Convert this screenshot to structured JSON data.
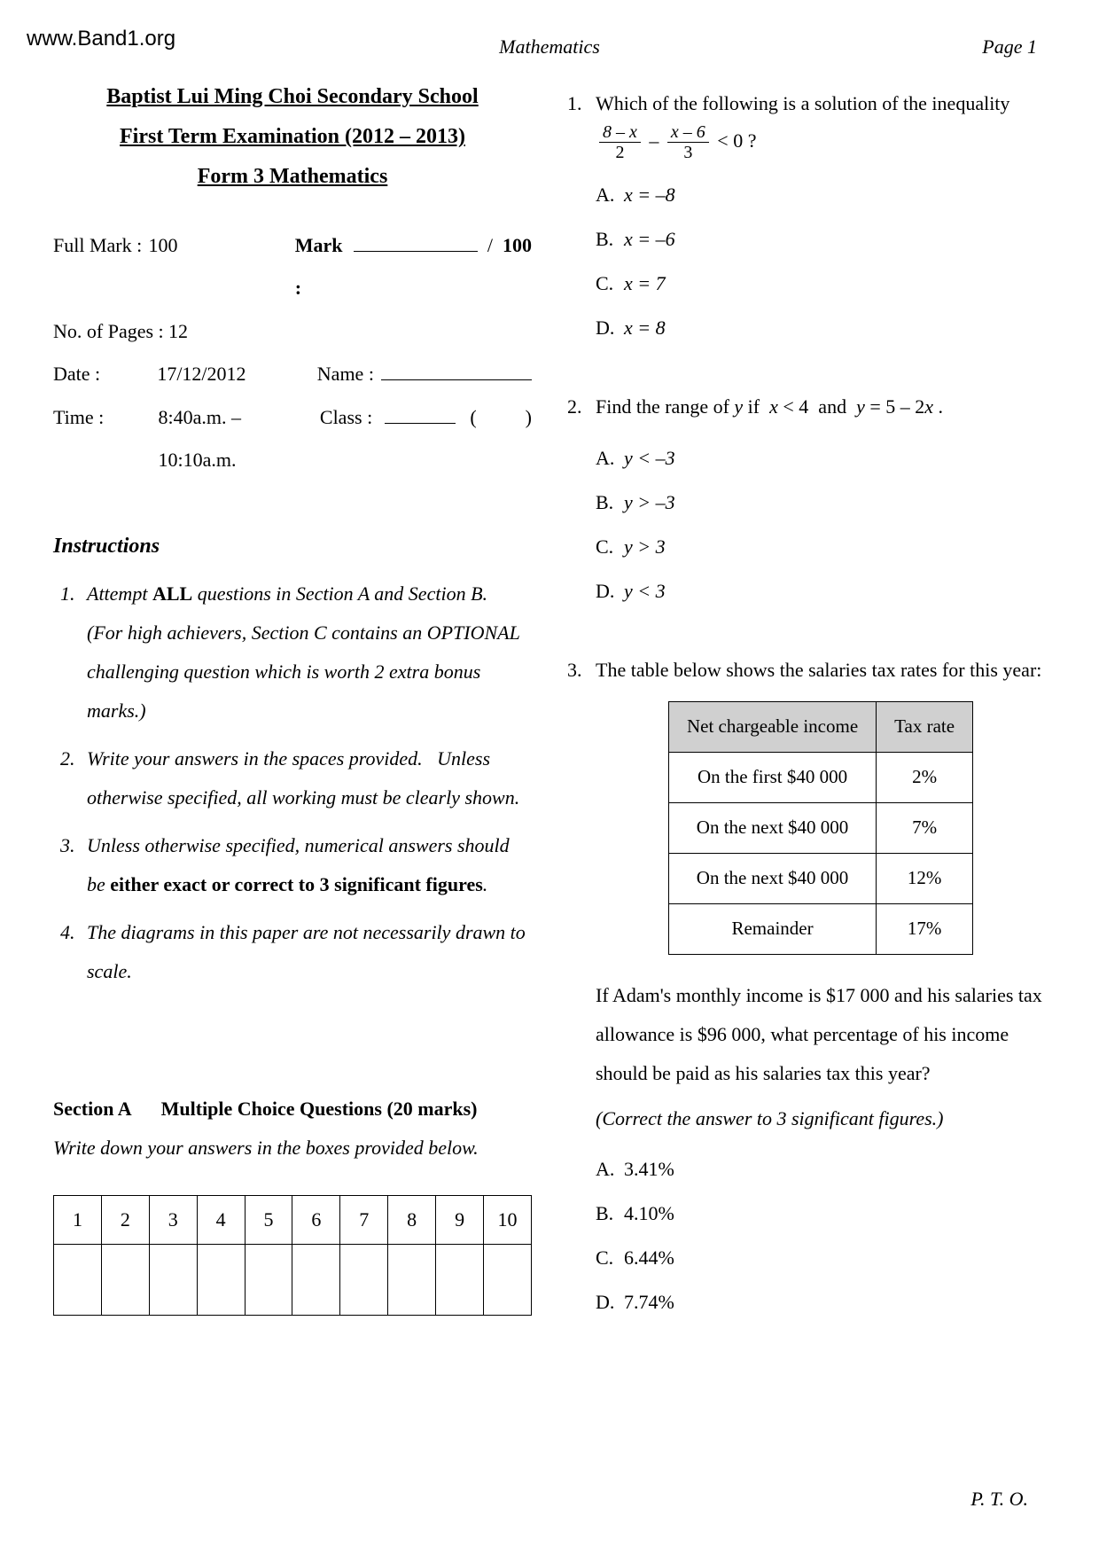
{
  "watermark": "www.Band1.org",
  "header": {
    "left": "",
    "center": "Mathematics",
    "right": "Page 1"
  },
  "titles": {
    "school": "Baptist Lui Ming Choi Secondary School",
    "exam": "First Term Examination (2012 – 2013)",
    "subject": "Form 3 Mathematics"
  },
  "info": {
    "fullmark_label": "Full Mark :",
    "fullmark": "100",
    "mark_label": "Mark :",
    "mark_total": "100",
    "pages_label": "No. of Pages :",
    "pages": "12",
    "date_label": "Date :",
    "date": "17/12/2012",
    "name_label": "Name :",
    "time_label": "Time :",
    "time": "8:40a.m. – 10:10a.m.",
    "class_label": "Class :"
  },
  "instructions": {
    "title": "Instructions",
    "items": [
      "Attempt <b>ALL</b> questions in Section A and Section B.<br>(For high achievers, Section C contains an OPTIONAL challenging question which is worth 2 extra bonus marks.)",
      "Write your answers in the spaces provided. &nbsp;&nbsp;Unless otherwise specified, all working must be clearly shown.",
      "Unless otherwise specified, numerical answers should be <b>either exact or correct to 3 significant figures</b>.",
      "The diagrams in this paper are not necessarily drawn to scale."
    ]
  },
  "sectionA": {
    "title_prefix": "Section A",
    "title": "Multiple Choice Questions (20 marks)",
    "subtitle": "Write down your answers in the boxes provided below.",
    "cols": [
      "1",
      "2",
      "3",
      "4",
      "5",
      "6",
      "7",
      "8",
      "9",
      "10"
    ]
  },
  "q1": {
    "num": "1.",
    "stem_a": "Which of the following is a solution of the inequality ",
    "frac1_num": "8 – x",
    "frac1_den": "2",
    "minus": "–",
    "frac2_num": "x – 6",
    "frac2_den": "3",
    "stem_b": " < 0 ?",
    "A": "x = –8",
    "B": "x = –6",
    "C": "x = 7",
    "D": "x = 8"
  },
  "q2": {
    "num": "2.",
    "stem": "Find the range of <span class=\"italic-var\">y</span> if &nbsp;<span class=\"italic-var\">x</span> < 4 &nbsp;and&nbsp; <span class=\"italic-var\">y</span> = 5 – 2<span class=\"italic-var\">x</span> .",
    "A": "y < –3",
    "B": "y > –3",
    "C": "y > 3",
    "D": "y < 3"
  },
  "q3": {
    "num": "3.",
    "stem": "The table below shows the salaries tax rates for this year:",
    "table": {
      "head": [
        "Net chargeable income",
        "Tax rate"
      ],
      "rows": [
        [
          "On the first $40 000",
          "2%"
        ],
        [
          "On the next $40 000",
          "7%"
        ],
        [
          "On the next $40 000",
          "12%"
        ],
        [
          "Remainder",
          "17%"
        ]
      ]
    },
    "body": "If Adam's monthly income is $17 000 and his salaries tax allowance is $96 000, what percentage of his income should be paid as his salaries tax this year?",
    "note": "(Correct the answer to 3 significant figures.)",
    "A": "3.41%",
    "B": "4.10%",
    "C": "6.44%",
    "D": "7.74%"
  },
  "pto": "P. T. O."
}
